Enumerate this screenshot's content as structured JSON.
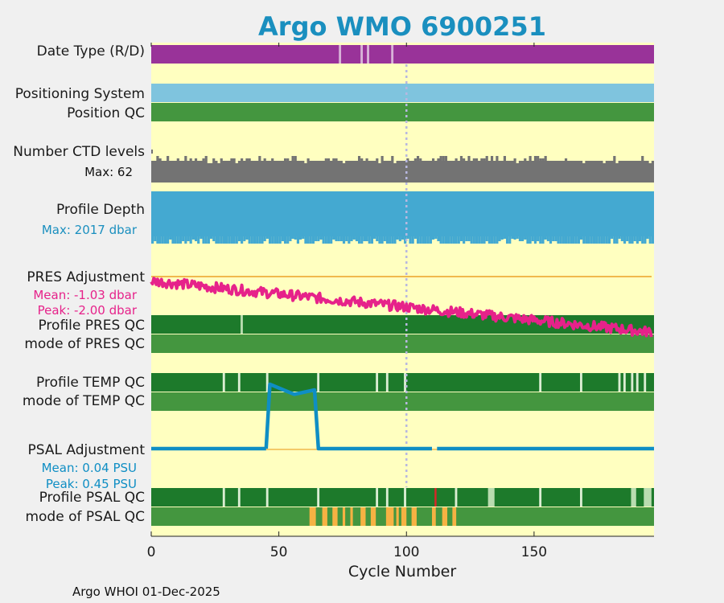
{
  "chart_data": {
    "type": "timeline",
    "title": "Argo WMO 6900251",
    "xlabel": "Cycle Number",
    "xlim": [
      0,
      197
    ],
    "xticks": [
      0,
      50,
      100,
      150
    ],
    "xtick_labels": [
      "0",
      "50",
      "100",
      "150"
    ],
    "marker_cycle": 100,
    "rows": {
      "date_type": "Date Type (R/D)",
      "positioning_system": "Positioning System",
      "position_qc": "Position QC",
      "number_ctd_levels": "Number CTD levels",
      "profile_depth": "Profile Depth",
      "pres_adjustment": "PRES Adjustment",
      "profile_pres_qc": "Profile PRES QC",
      "mode_pres_qc": "mode of PRES QC",
      "profile_temp_qc": "Profile TEMP QC",
      "mode_temp_qc": "mode of TEMP QC",
      "psal_adjustment": "PSAL Adjustment",
      "profile_psal_qc": "Profile PSAL QC",
      "mode_psal_qc": "mode of PSAL QC"
    },
    "ctd_levels_max": "Max: 62",
    "profile_depth_max": "Max: 2017 dbar",
    "pres_adjustment_stats": {
      "mean": "Mean: -1.03 dbar",
      "peak": "Peak: -2.00 dbar"
    },
    "psal_adjustment_stats": {
      "mean": "Mean: 0.04 PSU",
      "peak": "Peak: 0.45 PSU"
    },
    "date_type_gaps": [
      73.5,
      82,
      84.5,
      94
    ],
    "pres_qc_gaps": [
      35
    ],
    "temp_qc_gaps": [
      28,
      34,
      45,
      65,
      88,
      92,
      99,
      152,
      168,
      183,
      185,
      188,
      190,
      193
    ],
    "psal_qc_gaps": [
      28,
      34,
      45,
      65,
      88,
      92,
      99,
      119,
      132,
      152,
      168
    ],
    "psal_qc_red": [
      111
    ],
    "psal_qc_light_ranges": [
      [
        132,
        134.5
      ],
      [
        188,
        190
      ],
      [
        193,
        196
      ]
    ],
    "psal_mode_orange": [
      [
        62,
        64.5
      ],
      [
        67,
        69
      ],
      [
        71,
        73
      ],
      [
        75,
        76
      ],
      [
        78,
        79
      ],
      [
        82,
        84
      ],
      [
        86,
        88
      ],
      [
        92,
        95
      ],
      [
        96,
        97
      ],
      [
        98,
        100
      ],
      [
        102,
        104
      ],
      [
        110,
        111.5
      ],
      [
        114,
        116
      ],
      [
        118,
        119.5
      ]
    ],
    "psal_adjustment_segments": [
      {
        "x": [
          0,
          45
        ],
        "y": [
          0.0,
          0.0
        ]
      },
      {
        "x": [
          45,
          46.5,
          56,
          64,
          65.5,
          66.5
        ],
        "y": [
          0.0,
          0.45,
          0.38,
          0.41,
          0.0,
          0.0
        ]
      },
      {
        "x": [
          66.5,
          110
        ],
        "y": [
          0.0,
          0.0
        ]
      },
      {
        "x": [
          112,
          197
        ],
        "y": [
          0.0,
          0.0
        ]
      }
    ],
    "pres_adjustment_start": -0.15,
    "pres_adjustment_end": -1.92,
    "colors": {
      "background": "#ffffc0",
      "date_type": "#993399",
      "positioning": "#7fc4de",
      "qc_good": "#1d7a2b",
      "qc_mode_good": "#44963f",
      "ctd": "#737373",
      "depth": "#44a9d1",
      "pres_line": "#e6228a",
      "psal_line": "#0f8ec4",
      "zero_line": "#f0b94c",
      "orange": "#f6b243",
      "red": "#d62728",
      "light_green": "#b9dcb0",
      "gap_line": "#ffffdd",
      "title": "#1a8fbf",
      "pres_text": "#e6228a",
      "psal_text": "#0f8ec4",
      "depth_text": "#1a8fbf"
    }
  },
  "footer": "Argo WHOI 01-Dec-2025"
}
